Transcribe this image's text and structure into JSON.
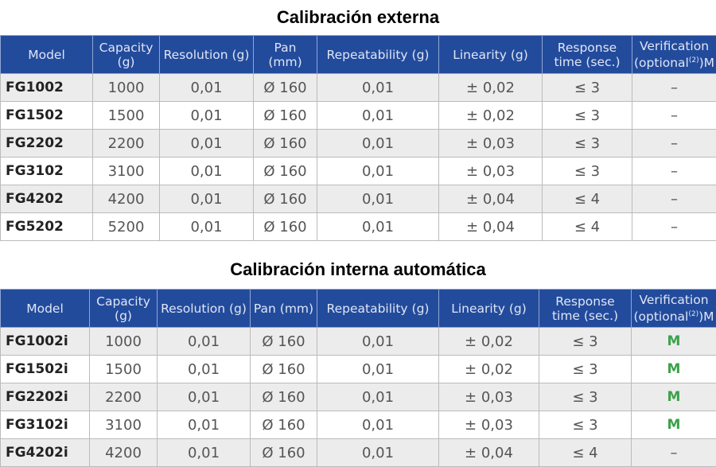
{
  "tables": [
    {
      "title": "Calibración externa",
      "headers": [
        "Model",
        "Capacity (g)",
        "Resolution (g)",
        "Pan (mm)",
        "Repeatability (g)",
        "Linearity (g)",
        "Response time (sec.)",
        "Verification (optional(2))M"
      ],
      "rows": [
        [
          "FG1002",
          "1000",
          "0,01",
          "Ø 160",
          "0,01",
          "± 0,02",
          "≤ 3",
          "–"
        ],
        [
          "FG1502",
          "1500",
          "0,01",
          "Ø 160",
          "0,01",
          "± 0,02",
          "≤ 3",
          "–"
        ],
        [
          "FG2202",
          "2200",
          "0,01",
          "Ø 160",
          "0,01",
          "± 0,03",
          "≤ 3",
          "–"
        ],
        [
          "FG3102",
          "3100",
          "0,01",
          "Ø 160",
          "0,01",
          "± 0,03",
          "≤ 3",
          "–"
        ],
        [
          "FG4202",
          "4200",
          "0,01",
          "Ø 160",
          "0,01",
          "± 0,04",
          "≤ 4",
          "–"
        ],
        [
          "FG5202",
          "5200",
          "0,01",
          "Ø 160",
          "0,01",
          "± 0,04",
          "≤ 4",
          "–"
        ]
      ]
    },
    {
      "title": "Calibración interna automática",
      "headers": [
        "Model",
        "Capacity (g)",
        "Resolution (g)",
        "Pan (mm)",
        "Repeatability (g)",
        "Linearity (g)",
        "Response time (sec.)",
        "Verification (optional(2))M"
      ],
      "rows": [
        [
          "FG1002i",
          "1000",
          "0,01",
          "Ø 160",
          "0,01",
          "± 0,02",
          "≤ 3",
          "M"
        ],
        [
          "FG1502i",
          "1500",
          "0,01",
          "Ø 160",
          "0,01",
          "± 0,02",
          "≤ 3",
          "M"
        ],
        [
          "FG2202i",
          "2200",
          "0,01",
          "Ø 160",
          "0,01",
          "± 0,03",
          "≤ 3",
          "M"
        ],
        [
          "FG3102i",
          "3100",
          "0,01",
          "Ø 160",
          "0,01",
          "± 0,03",
          "≤ 3",
          "M"
        ],
        [
          "FG4202i",
          "4200",
          "0,01",
          "Ø 160",
          "0,01",
          "± 0,04",
          "≤ 4",
          "–"
        ]
      ]
    }
  ],
  "colors": {
    "header_bg": "#234b9c",
    "header_text": "#dfe6f5",
    "row_alt": "#ececec",
    "verification_mark": "#3aa24a"
  }
}
